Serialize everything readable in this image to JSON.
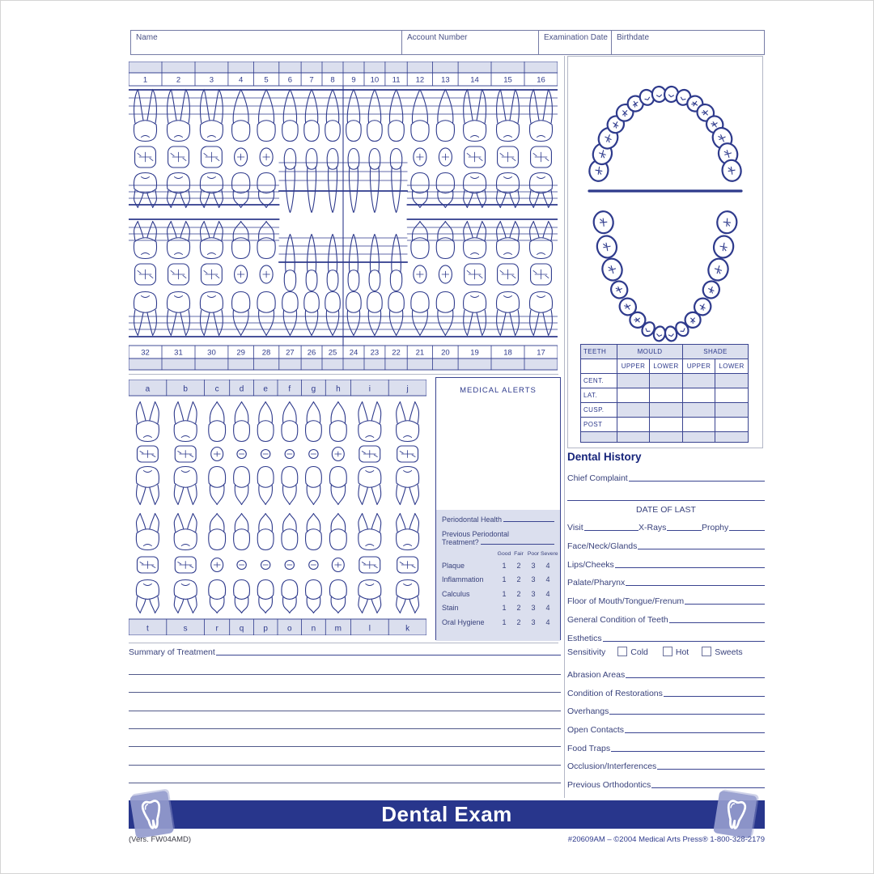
{
  "header_fields": [
    {
      "label": "Name"
    },
    {
      "label": "Account Number"
    },
    {
      "label": "Examination Date"
    },
    {
      "label": "Birthdate"
    }
  ],
  "permanent_chart": {
    "upper_numbers": [
      "1",
      "2",
      "3",
      "4",
      "5",
      "6",
      "7",
      "8",
      "9",
      "10",
      "11",
      "12",
      "13",
      "14",
      "15",
      "16"
    ],
    "lower_numbers": [
      "32",
      "31",
      "30",
      "29",
      "28",
      "27",
      "26",
      "25",
      "24",
      "23",
      "22",
      "21",
      "20",
      "19",
      "18",
      "17"
    ],
    "upper_types": [
      "M",
      "M",
      "M",
      "P",
      "P",
      "C",
      "I",
      "I",
      "I",
      "I",
      "C",
      "P",
      "P",
      "M",
      "M",
      "M"
    ],
    "lower_types": [
      "M",
      "M",
      "M",
      "P",
      "P",
      "C",
      "I",
      "I",
      "I",
      "I",
      "C",
      "P",
      "P",
      "M",
      "M",
      "M"
    ]
  },
  "primary_chart": {
    "upper_letters": [
      "a",
      "b",
      "c",
      "d",
      "e",
      "f",
      "g",
      "h",
      "i",
      "j"
    ],
    "lower_letters": [
      "t",
      "s",
      "r",
      "q",
      "p",
      "o",
      "n",
      "m",
      "l",
      "k"
    ],
    "types": [
      "M",
      "M",
      "C",
      "I",
      "I",
      "I",
      "I",
      "C",
      "M",
      "M"
    ]
  },
  "mould_shade_table": {
    "teeth_header": "TEETH",
    "group_headers": [
      "MOULD",
      "SHADE"
    ],
    "sub_headers": [
      "UPPER",
      "LOWER",
      "UPPER",
      "LOWER"
    ],
    "row_labels": [
      "CENT.",
      "LAT.",
      "CUSP.",
      "POST",
      ""
    ]
  },
  "medical_alerts": {
    "title": "MEDICAL ALERTS",
    "periodontal_health_label": "Periodontal Health",
    "previous_treatment_line1": "Previous Periodontal",
    "previous_treatment_line2": "Treatment?",
    "scale_headers": [
      "Good",
      "Fair",
      "Poor",
      "Severe"
    ],
    "rows": [
      {
        "label": "Plaque",
        "values": [
          "1",
          "2",
          "3",
          "4"
        ]
      },
      {
        "label": "Inflammation",
        "values": [
          "1",
          "2",
          "3",
          "4"
        ]
      },
      {
        "label": "Calculus",
        "values": [
          "1",
          "2",
          "3",
          "4"
        ]
      },
      {
        "label": "Stain",
        "values": [
          "1",
          "2",
          "3",
          "4"
        ]
      },
      {
        "label": "Oral Hygiene",
        "values": [
          "1",
          "2",
          "3",
          "4"
        ]
      }
    ]
  },
  "dental_history": {
    "title": "Dental History",
    "chief_complaint_label": "Chief Complaint",
    "date_of_last_label": "DATE OF LAST",
    "date_of_last_fields": [
      "Visit",
      "X-Rays",
      "Prophy"
    ],
    "fields_group1": [
      "Face/Neck/Glands",
      "Lips/Cheeks",
      "Palate/Pharynx",
      "Floor of Mouth/Tongue/Frenum",
      "General Condition of Teeth",
      "Esthetics"
    ],
    "sensitivity": {
      "label": "Sensitivity",
      "options": [
        "Cold",
        "Hot",
        "Sweets"
      ]
    },
    "fields_group2": [
      "Abrasion Areas",
      "Condition of Restorations",
      "Overhangs",
      "Open Contacts",
      "Food Traps",
      "Occlusion/Interferences",
      "Previous Orthodontics"
    ]
  },
  "summary": {
    "label": "Summary of Treatment",
    "blank_line_count": 7
  },
  "footer": {
    "banner_title": "Dental Exam",
    "version_text": "(Vers. FW04AMD)",
    "catalog_text": "#20609AM – ©2004 Medical Arts Press® 1-800-328-2179"
  },
  "colors": {
    "ink": "#2e3a8c",
    "shade_fill": "#dbdfee",
    "banner": "#28368c",
    "label_text": "#4a5286",
    "logo_square": "#9aa1d0",
    "separator": "#b3b7c6"
  }
}
